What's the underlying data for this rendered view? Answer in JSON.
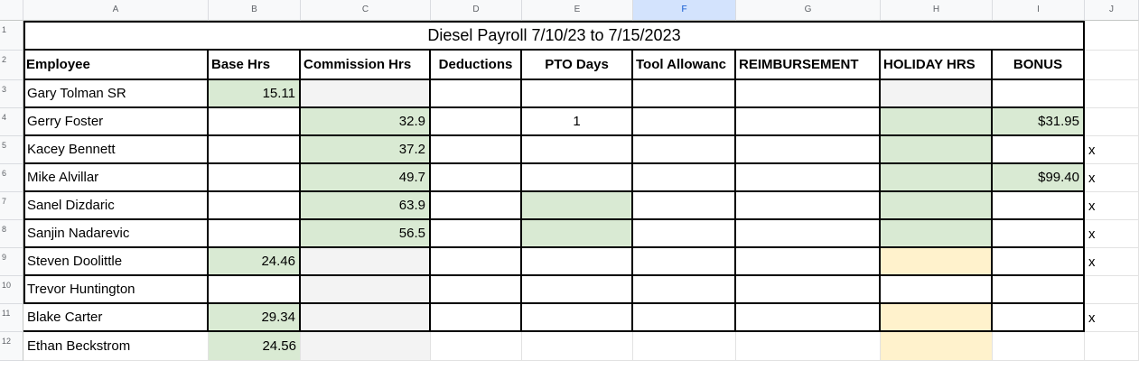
{
  "sheet": {
    "column_headers": [
      "A",
      "B",
      "C",
      "D",
      "E",
      "F",
      "G",
      "H",
      "I",
      "J"
    ],
    "selected_column": "F",
    "row_numbers": [
      "1",
      "2",
      "3",
      "4",
      "5",
      "6",
      "7",
      "8",
      "9",
      "10",
      "11",
      "12"
    ],
    "title": "Diesel Payroll 7/10/23 to 7/15/2023",
    "headers": [
      "Employee",
      "Base Hrs",
      "Commission Hrs",
      "Deductions",
      "PTO Days",
      "Tool Allowanc",
      "REIMBURSEMENT",
      "HOLIDAY HRS",
      "BONUS"
    ],
    "rows": [
      {
        "employee": "Gary Tolman SR",
        "base_hrs": "15.11",
        "commission_hrs": "",
        "deductions": "",
        "pto_days": "",
        "tool_allowance": "",
        "reimbursement": "",
        "holiday_hrs": "",
        "bonus": "",
        "mark": ""
      },
      {
        "employee": "Gerry Foster",
        "base_hrs": "",
        "commission_hrs": "32.9",
        "deductions": "",
        "pto_days": "1",
        "tool_allowance": "",
        "reimbursement": "",
        "holiday_hrs": "",
        "bonus": "$31.95",
        "mark": ""
      },
      {
        "employee": "Kacey Bennett",
        "base_hrs": "",
        "commission_hrs": "37.2",
        "deductions": "",
        "pto_days": "",
        "tool_allowance": "",
        "reimbursement": "",
        "holiday_hrs": "",
        "bonus": "",
        "mark": "x"
      },
      {
        "employee": "Mike Alvillar",
        "base_hrs": "",
        "commission_hrs": "49.7",
        "deductions": "",
        "pto_days": "",
        "tool_allowance": "",
        "reimbursement": "",
        "holiday_hrs": "",
        "bonus": "$99.40",
        "mark": "x"
      },
      {
        "employee": "Sanel Dizdaric",
        "base_hrs": "",
        "commission_hrs": "63.9",
        "deductions": "",
        "pto_days": "",
        "tool_allowance": "",
        "reimbursement": "",
        "holiday_hrs": "",
        "bonus": "",
        "mark": "x"
      },
      {
        "employee": "Sanjin Nadarevic",
        "base_hrs": "",
        "commission_hrs": "56.5",
        "deductions": "",
        "pto_days": "",
        "tool_allowance": "",
        "reimbursement": "",
        "holiday_hrs": "",
        "bonus": "",
        "mark": "x"
      },
      {
        "employee": "Steven Doolittle",
        "base_hrs": "24.46",
        "commission_hrs": "",
        "deductions": "",
        "pto_days": "",
        "tool_allowance": "",
        "reimbursement": "",
        "holiday_hrs": "",
        "bonus": "",
        "mark": "x"
      },
      {
        "employee": "Trevor Huntington",
        "base_hrs": "",
        "commission_hrs": "",
        "deductions": "",
        "pto_days": "",
        "tool_allowance": "",
        "reimbursement": "",
        "holiday_hrs": "",
        "bonus": "",
        "mark": ""
      },
      {
        "employee": "Blake Carter",
        "base_hrs": "29.34",
        "commission_hrs": "",
        "deductions": "",
        "pto_days": "",
        "tool_allowance": "",
        "reimbursement": "",
        "holiday_hrs": "",
        "bonus": "",
        "mark": "x"
      },
      {
        "employee": "Ethan Beckstrom",
        "base_hrs": "24.56",
        "commission_hrs": "",
        "deductions": "",
        "pto_days": "",
        "tool_allowance": "",
        "reimbursement": "",
        "holiday_hrs": "",
        "bonus": "",
        "mark": ""
      }
    ]
  },
  "colors": {
    "green_fill": "#d9ead3",
    "gray_fill": "#f3f3f3",
    "cream_fill": "#fff2cc",
    "selected_header": "#d3e3fd"
  }
}
